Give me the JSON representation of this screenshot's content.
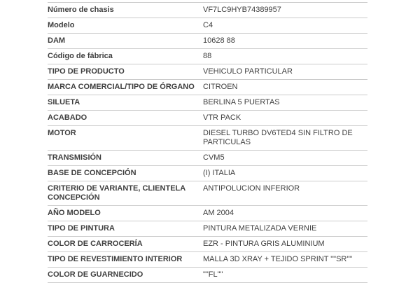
{
  "page": {
    "background_color": "#ffffff",
    "text_color": "#3e3e3e",
    "separator_color": "#cccccc"
  },
  "table": {
    "rows": [
      {
        "label": "Número de chasis",
        "value": "VF7LC9HYB74389957"
      },
      {
        "label": "Modelo",
        "value": "C4"
      },
      {
        "label": "DAM",
        "value": "10628 88"
      },
      {
        "label": "Código de fábrica",
        "value": "88"
      },
      {
        "label": "TIPO DE PRODUCTO",
        "value": "VEHICULO PARTICULAR"
      },
      {
        "label": "MARCA COMERCIAL/TIPO DE ÓRGANO",
        "value": "CITROEN"
      },
      {
        "label": "SILUETA",
        "value": "BERLINA 5 PUERTAS"
      },
      {
        "label": "ACABADO",
        "value": "VTR PACK"
      },
      {
        "label": "MOTOR",
        "value": "DIESEL TURBO DV6TED4 SIN FILTRO DE PARTICULAS"
      },
      {
        "label": "TRANSMISIÓN",
        "value": "CVM5"
      },
      {
        "label": "BASE DE CONCEPCIÓN",
        "value": "(I) ITALIA"
      },
      {
        "label": "CRITERIO DE VARIANTE, CLIENTELA CONCEPCIÓN",
        "value": "ANTIPOLUCION INFERIOR"
      },
      {
        "label": "AÑO MODELO",
        "value": "AM 2004"
      },
      {
        "label": "TIPO DE PINTURA",
        "value": "PINTURA METALIZADA VERNIE"
      },
      {
        "label": "COLOR DE CARROCERÍA",
        "value": "EZR - PINTURA GRIS ALUMINIUM"
      },
      {
        "label": "TIPO DE REVESTIMIENTO INTERIOR",
        "value": "MALLA 3D XRAY + TEJIDO SPRINT \"\"SR\"\""
      },
      {
        "label": "COLOR DE GUARNECIDO",
        "value": "\"\"FL\"\""
      }
    ]
  }
}
